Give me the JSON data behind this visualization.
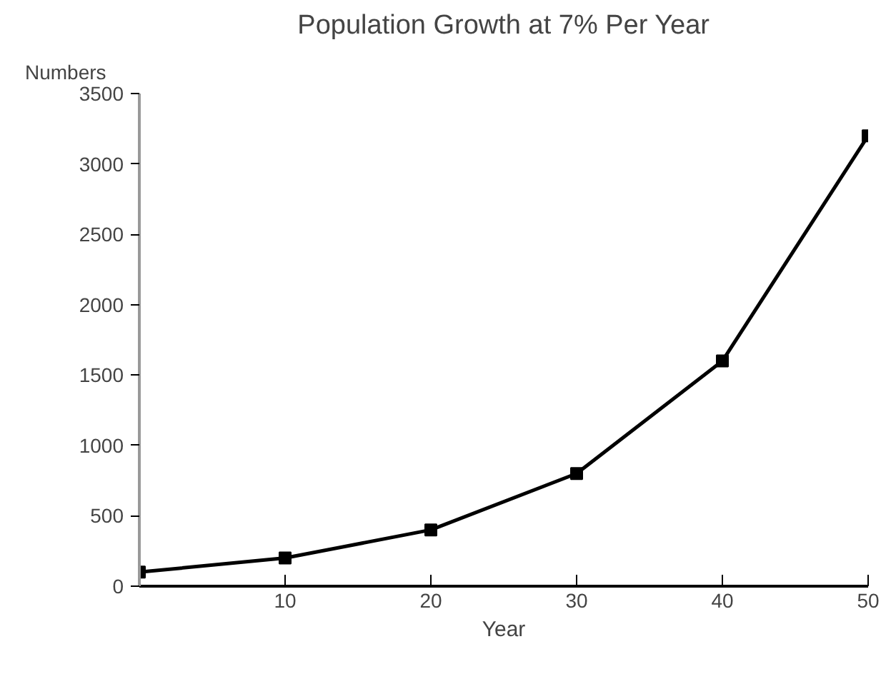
{
  "chart_data": {
    "type": "line",
    "title": "Population Growth at 7% Per Year",
    "xlabel": "Year",
    "ylabel": "Numbers",
    "x": [
      0,
      10,
      20,
      30,
      40,
      50
    ],
    "series": [
      {
        "color": "#000000",
        "values": [
          100,
          200,
          400,
          800,
          1600,
          3200
        ]
      }
    ],
    "xlim": [
      0,
      50
    ],
    "xticks": [
      10,
      20,
      30,
      40,
      50
    ],
    "ylim": [
      0,
      3500
    ],
    "yticks": [
      0,
      500,
      1000,
      1500,
      2000,
      2500,
      3000,
      3500
    ],
    "marker": "square",
    "grid": false
  }
}
